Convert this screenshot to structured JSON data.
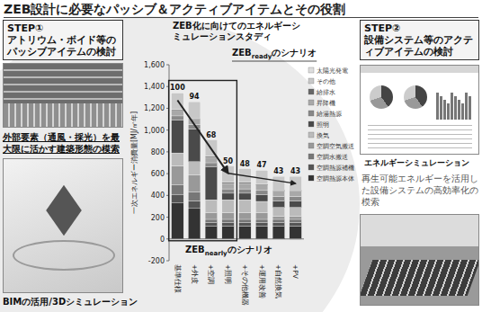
{
  "header": {
    "title": "ZEB設計に必要なパッシブ＆アクティブアイテムとその役割"
  },
  "panels": [
    {
      "step": "STEP①",
      "title": "アトリウム・ボイド等のパッシブアイテムの検討",
      "captions": [
        "外部要素（通風・採光）を最大限に活かす建築形態の模索",
        "BIMの活用/3Dシミュレーション"
      ]
    },
    {
      "step": "STEP②",
      "title": "設備システム等のアクティブアイテムの検討",
      "captions": [
        "エネルギーシミュレーション",
        "再生可能エネルギーを活用した設備システムの高効率化の模索"
      ]
    }
  ],
  "chart_data": {
    "type": "bar",
    "stacked": true,
    "title": "ZEB化に向けてのエネルギーシミュレーションスタディ",
    "y_label": "一次エネルギー消費量[MJ/㎡年]",
    "categories": [
      "基準仕様",
      "+外皮",
      "+空調",
      "+照明",
      "+その他機器",
      "+運用改善",
      "+自然換気",
      "+PV"
    ],
    "ratios": [
      100,
      94,
      68,
      50,
      48,
      47,
      43,
      43
    ],
    "ylim": [
      -200,
      1600
    ],
    "yticks": [
      -200,
      0,
      200,
      400,
      600,
      800,
      {
        "value": 1000,
        "label": "1,000"
      },
      {
        "value": 1200,
        "label": "1,200"
      },
      {
        "value": 1400,
        "label": "1,400"
      },
      {
        "value": 1600,
        "label": "1,600"
      }
    ],
    "legend": "right",
    "series": [
      {
        "name": "空調熱源本体",
        "color": "#333333",
        "values": [
          330,
          280,
          120,
          120,
          120,
          120,
          120,
          120
        ]
      },
      {
        "name": "空調熱源補機",
        "color": "#555555",
        "values": [
          80,
          70,
          30,
          30,
          30,
          30,
          30,
          30
        ]
      },
      {
        "name": "空調水搬送",
        "color": "#777777",
        "values": [
          90,
          80,
          30,
          30,
          30,
          30,
          30,
          30
        ]
      },
      {
        "name": "空調空気搬送",
        "color": "#999999",
        "values": [
          170,
          160,
          60,
          60,
          60,
          60,
          30,
          30
        ]
      },
      {
        "name": "換気",
        "color": "#bbbbbb",
        "values": [
          120,
          120,
          120,
          120,
          120,
          105,
          80,
          80
        ]
      },
      {
        "name": "照明",
        "color": "#4a4a4a",
        "values": [
          300,
          300,
          300,
          60,
          60,
          60,
          60,
          60
        ]
      },
      {
        "name": "給湯熱源",
        "color": "#888888",
        "values": [
          40,
          40,
          40,
          40,
          40,
          40,
          40,
          40
        ]
      },
      {
        "name": "昇降機",
        "color": "#a8a8a8",
        "values": [
          50,
          50,
          50,
          50,
          50,
          50,
          50,
          50
        ]
      },
      {
        "name": "給排水",
        "color": "#666666",
        "values": [
          10,
          10,
          10,
          10,
          10,
          10,
          10,
          10
        ]
      },
      {
        "name": "その他",
        "color": "#c8c8c8",
        "values": [
          150,
          150,
          150,
          150,
          125,
          125,
          125,
          125
        ]
      },
      {
        "name": "太陽光発電",
        "color": "#dddddd",
        "values": [
          0,
          0,
          0,
          0,
          0,
          0,
          0,
          -15
        ]
      }
    ],
    "annotations": [
      {
        "text": "ZEB",
        "sub": "ready",
        "suffix": "のシナリオ"
      },
      {
        "text": "ZEB",
        "sub": "nearly",
        "suffix": "のシナリオ"
      }
    ]
  }
}
